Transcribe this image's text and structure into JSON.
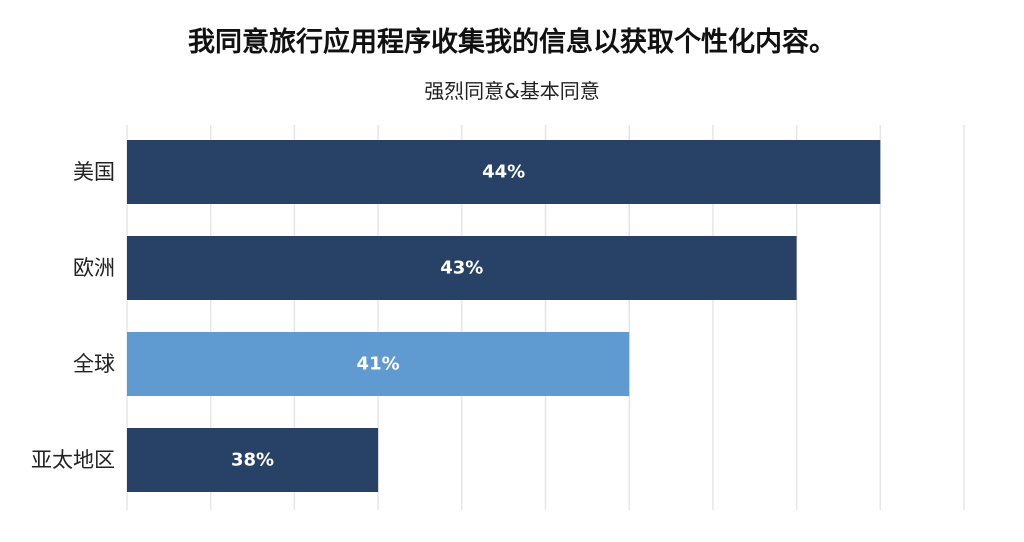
{
  "chart_data": {
    "type": "bar",
    "orientation": "horizontal",
    "title": "我同意旅行应用程序收集我的信息以获取个性化内容。",
    "subtitle": "强烈同意&基本同意",
    "categories": [
      "美国",
      "欧洲",
      "全球",
      "亚太地区"
    ],
    "values": [
      44,
      43,
      41,
      38
    ],
    "data_labels": [
      "44%",
      "43%",
      "41%",
      "38%"
    ],
    "highlight_category": "全球",
    "xlim": [
      35,
      45
    ],
    "grid": true,
    "legend": "none"
  },
  "colors": {
    "bar": "#274266",
    "highlight": "#5f9bd1",
    "label": "#ffffff",
    "grid": "#e6e6e6"
  }
}
